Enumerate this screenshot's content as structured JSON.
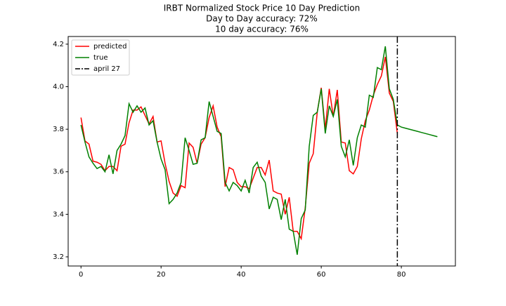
{
  "chart_data": {
    "type": "line",
    "title": [
      "IRBT Normalized Stock Price 10 Day Prediction",
      "Day to Day accuracy: 72%",
      "10 day accuracy: 76%"
    ],
    "x": [
      0,
      1,
      2,
      3,
      4,
      5,
      6,
      7,
      8,
      9,
      10,
      11,
      12,
      13,
      14,
      15,
      16,
      17,
      18,
      19,
      20,
      21,
      22,
      23,
      24,
      25,
      26,
      27,
      28,
      29,
      30,
      31,
      32,
      33,
      34,
      35,
      36,
      37,
      38,
      39,
      40,
      41,
      42,
      43,
      44,
      45,
      46,
      47,
      48,
      49,
      50,
      51,
      52,
      53,
      54,
      55,
      56,
      57,
      58,
      59,
      60,
      61,
      62,
      63,
      64,
      65,
      66,
      67,
      68,
      69,
      70,
      71,
      72,
      73,
      74,
      75,
      76,
      77,
      78,
      79,
      80,
      81,
      82,
      83,
      84,
      85,
      86,
      87,
      88,
      89
    ],
    "series": [
      {
        "name": "predicted",
        "color": "#ff0000",
        "values": [
          3.855,
          3.745,
          3.73,
          3.65,
          3.645,
          3.635,
          3.605,
          3.625,
          3.625,
          3.605,
          3.72,
          3.73,
          3.83,
          3.89,
          3.89,
          3.905,
          3.865,
          3.825,
          3.86,
          3.74,
          3.745,
          3.64,
          3.555,
          3.5,
          3.485,
          3.535,
          3.525,
          3.735,
          3.715,
          3.64,
          3.73,
          3.76,
          3.855,
          3.91,
          3.81,
          3.765,
          3.53,
          3.62,
          3.61,
          3.55,
          3.53,
          3.53,
          3.52,
          3.57,
          3.62,
          3.62,
          3.585,
          3.655,
          3.51,
          3.5,
          3.495,
          3.4,
          3.48,
          3.32,
          3.32,
          3.285,
          3.43,
          3.64,
          3.685,
          3.88,
          3.995,
          3.8,
          3.99,
          3.86,
          3.985,
          3.74,
          3.735,
          3.605,
          3.59,
          3.625,
          3.755,
          3.84,
          3.89,
          3.96,
          4.01,
          4.05,
          4.14,
          3.97,
          3.93,
          3.78,
          null,
          null,
          null,
          null,
          null,
          null,
          null,
          null,
          null,
          null
        ]
      },
      {
        "name": "true",
        "color": "#008000",
        "values": [
          3.82,
          3.74,
          3.67,
          3.64,
          3.615,
          3.625,
          3.6,
          3.68,
          3.59,
          3.7,
          3.73,
          3.77,
          3.92,
          3.88,
          3.91,
          3.88,
          3.9,
          3.82,
          3.84,
          3.74,
          3.66,
          3.61,
          3.45,
          3.47,
          3.5,
          3.55,
          3.76,
          3.7,
          3.635,
          3.64,
          3.75,
          3.76,
          3.93,
          3.86,
          3.79,
          3.78,
          3.55,
          3.51,
          3.55,
          3.535,
          3.51,
          3.56,
          3.5,
          3.62,
          3.645,
          3.58,
          3.55,
          3.425,
          3.48,
          3.47,
          3.375,
          3.47,
          3.33,
          3.32,
          3.21,
          3.38,
          3.42,
          3.72,
          3.865,
          3.88,
          3.99,
          3.78,
          3.91,
          3.86,
          3.94,
          3.72,
          3.67,
          3.75,
          3.63,
          3.76,
          3.82,
          3.81,
          3.96,
          3.95,
          4.09,
          4.08,
          4.19,
          3.99,
          3.94,
          3.82,
          3.81,
          3.805,
          3.8,
          3.795,
          3.79,
          3.785,
          3.78,
          3.775,
          3.77,
          3.765
        ]
      }
    ],
    "vline": {
      "x": 79,
      "name": "april 27",
      "color": "#000000"
    },
    "xlim": [
      -3.2,
      93.5
    ],
    "ylim": [
      3.157,
      4.236
    ],
    "xticks": [
      0,
      20,
      40,
      60,
      80
    ],
    "yticks": [
      3.2,
      3.4,
      3.6,
      3.8,
      {
        "value": 4,
        "label": "4.0"
      },
      4.2
    ],
    "grid": false,
    "legend": "upper left"
  }
}
